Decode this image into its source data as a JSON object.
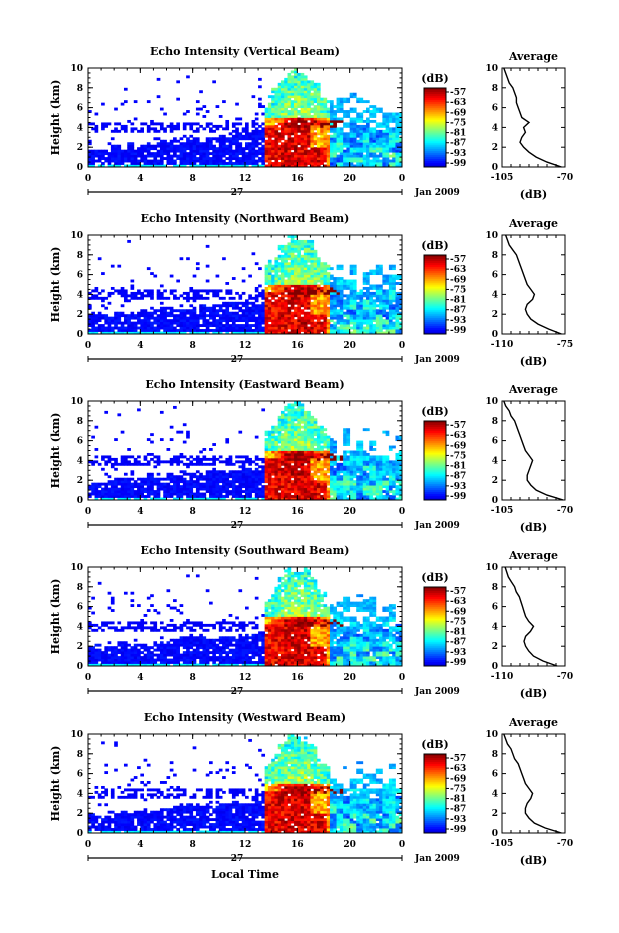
{
  "figure": {
    "colorbar_unit": "(dB)",
    "colorbar_ticks": [
      "-57",
      "-63",
      "-69",
      "-75",
      "-81",
      "-87",
      "-93",
      "-99"
    ],
    "y_label": "Height (km)",
    "x_bottom_label": "Local Time",
    "month_label": "Jan 2009",
    "day_label": "27",
    "profile_title": "Average",
    "profile_xlabel": "(dB)"
  },
  "chart_data": [
    {
      "type": "heatmap",
      "title": "Echo Intensity (Vertical Beam)",
      "x_ticks": [
        "0",
        "4",
        "8",
        "12",
        "16",
        "20",
        "0"
      ],
      "y_ticks": [
        "0",
        "2",
        "4",
        "6",
        "8",
        "10"
      ],
      "xlim": [
        0,
        24
      ],
      "ylim": [
        0,
        10
      ],
      "zlim": [
        -99,
        -57
      ],
      "profile": {
        "xlim": [
          -105,
          -70
        ],
        "x_ticks": [
          "-105",
          "-70"
        ],
        "heights": [
          0,
          0.5,
          1,
          1.5,
          2,
          2.5,
          3,
          3.5,
          4,
          4.5,
          5,
          5.5,
          6,
          6.5,
          7,
          7.5,
          8,
          8.5,
          9,
          9.5,
          10
        ],
        "values": [
          -72,
          -80,
          -86,
          -90,
          -93,
          -95,
          -94,
          -92,
          -93,
          -90,
          -94,
          -95,
          -96,
          -97,
          -97,
          -98,
          -99,
          -101,
          -102,
          -103,
          -104
        ]
      }
    },
    {
      "type": "heatmap",
      "title": "Echo Intensity (Northward Beam)",
      "x_ticks": [
        "0",
        "4",
        "8",
        "12",
        "16",
        "20",
        "0"
      ],
      "y_ticks": [
        "0",
        "2",
        "4",
        "6",
        "8",
        "10"
      ],
      "xlim": [
        0,
        24
      ],
      "ylim": [
        0,
        10
      ],
      "zlim": [
        -99,
        -57
      ],
      "profile": {
        "xlim": [
          -110,
          -75
        ],
        "x_ticks": [
          "-110",
          "-75"
        ],
        "heights": [
          0,
          0.5,
          1,
          1.5,
          2,
          2.5,
          3,
          3.5,
          4,
          4.5,
          5,
          5.5,
          6,
          6.5,
          7,
          7.5,
          8,
          8.5,
          9,
          9.5,
          10
        ],
        "values": [
          -77,
          -84,
          -90,
          -94,
          -96,
          -97,
          -96,
          -93,
          -92,
          -94,
          -96,
          -97,
          -98,
          -99,
          -100,
          -101,
          -102,
          -104,
          -106,
          -107,
          -108
        ]
      }
    },
    {
      "type": "heatmap",
      "title": "Echo Intensity (Eastward Beam)",
      "x_ticks": [
        "0",
        "4",
        "8",
        "12",
        "16",
        "20",
        "0"
      ],
      "y_ticks": [
        "0",
        "2",
        "4",
        "6",
        "8",
        "10"
      ],
      "xlim": [
        0,
        24
      ],
      "ylim": [
        0,
        10
      ],
      "zlim": [
        -99,
        -57
      ],
      "profile": {
        "xlim": [
          -105,
          -70
        ],
        "x_ticks": [
          "-105",
          "-70"
        ],
        "heights": [
          0,
          0.5,
          1,
          1.5,
          2,
          2.5,
          3,
          3.5,
          4,
          4.5,
          5,
          5.5,
          6,
          6.5,
          7,
          7.5,
          8,
          8.5,
          9,
          9.5,
          10
        ],
        "values": [
          -71,
          -80,
          -86,
          -89,
          -91,
          -91,
          -90,
          -89,
          -88,
          -90,
          -92,
          -93,
          -94,
          -95,
          -96,
          -97,
          -98,
          -100,
          -101,
          -103,
          -104
        ]
      }
    },
    {
      "type": "heatmap",
      "title": "Echo Intensity (Southward Beam)",
      "x_ticks": [
        "0",
        "4",
        "8",
        "12",
        "16",
        "20",
        "0"
      ],
      "y_ticks": [
        "0",
        "2",
        "4",
        "6",
        "8",
        "10"
      ],
      "xlim": [
        0,
        24
      ],
      "ylim": [
        0,
        10
      ],
      "zlim": [
        -99,
        -57
      ],
      "profile": {
        "xlim": [
          -110,
          -70
        ],
        "x_ticks": [
          "-110",
          "-70"
        ],
        "heights": [
          0,
          0.5,
          1,
          1.5,
          2,
          2.5,
          3,
          3.5,
          4,
          4.5,
          5,
          5.5,
          6,
          6.5,
          7,
          7.5,
          8,
          8.5,
          9,
          9.5,
          10
        ],
        "values": [
          -75,
          -84,
          -90,
          -93,
          -95,
          -96,
          -95,
          -92,
          -90,
          -93,
          -95,
          -96,
          -97,
          -98,
          -99,
          -101,
          -102,
          -104,
          -106,
          -107,
          -108
        ]
      }
    },
    {
      "type": "heatmap",
      "title": "Echo Intensity (Westward Beam)",
      "x_ticks": [
        "0",
        "4",
        "8",
        "12",
        "16",
        "20",
        "0"
      ],
      "y_ticks": [
        "0",
        "2",
        "4",
        "6",
        "8",
        "10"
      ],
      "xlim": [
        0,
        24
      ],
      "ylim": [
        0,
        10
      ],
      "zlim": [
        -99,
        -57
      ],
      "profile": {
        "xlim": [
          -105,
          -70
        ],
        "x_ticks": [
          "-105",
          "-70"
        ],
        "heights": [
          0,
          0.5,
          1,
          1.5,
          2,
          2.5,
          3,
          3.5,
          4,
          4.5,
          5,
          5.5,
          6,
          6.5,
          7,
          7.5,
          8,
          8.5,
          9,
          9.5,
          10
        ],
        "values": [
          -72,
          -81,
          -87,
          -90,
          -92,
          -92,
          -91,
          -89,
          -88,
          -90,
          -92,
          -93,
          -94,
          -95,
          -96,
          -98,
          -99,
          -100,
          -102,
          -103,
          -104
        ]
      }
    }
  ]
}
